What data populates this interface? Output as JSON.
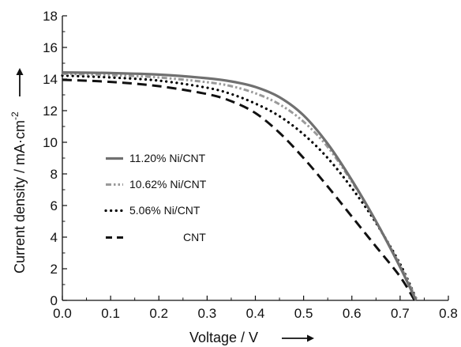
{
  "chart_data": {
    "type": "line",
    "xlabel": "Voltage / V",
    "ylabel": "Current density / mA·cm",
    "ylabel_superscript": "-2",
    "xlim": [
      0.0,
      0.8
    ],
    "ylim": [
      0,
      18
    ],
    "x_ticks": [
      "0.0",
      "0.1",
      "0.2",
      "0.3",
      "0.4",
      "0.5",
      "0.6",
      "0.7",
      "0.8"
    ],
    "y_ticks": [
      "0",
      "2",
      "4",
      "6",
      "8",
      "10",
      "12",
      "14",
      "16",
      "18"
    ],
    "grid": false,
    "legend_position": "center-left",
    "series": [
      {
        "name": "11.20% Ni/CNT",
        "style": "solid",
        "color": "#707070",
        "points": [
          [
            0.0,
            14.42
          ],
          [
            0.1,
            14.38
          ],
          [
            0.2,
            14.28
          ],
          [
            0.3,
            14.05
          ],
          [
            0.35,
            13.85
          ],
          [
            0.4,
            13.5
          ],
          [
            0.45,
            12.85
          ],
          [
            0.5,
            11.7
          ],
          [
            0.55,
            9.9
          ],
          [
            0.6,
            7.6
          ],
          [
            0.65,
            5.0
          ],
          [
            0.7,
            2.1
          ],
          [
            0.733,
            0.0
          ]
        ]
      },
      {
        "name": "10.62% Ni/CNT",
        "style": "dash-dot-dot",
        "color": "#9a9a9a",
        "points": [
          [
            0.0,
            14.33
          ],
          [
            0.1,
            14.25
          ],
          [
            0.2,
            14.1
          ],
          [
            0.3,
            13.8
          ],
          [
            0.35,
            13.55
          ],
          [
            0.4,
            13.1
          ],
          [
            0.45,
            12.4
          ],
          [
            0.5,
            11.3
          ],
          [
            0.55,
            9.7
          ],
          [
            0.6,
            7.5
          ],
          [
            0.65,
            5.0
          ],
          [
            0.7,
            2.2
          ],
          [
            0.735,
            0.0
          ]
        ]
      },
      {
        "name": "5.06% Ni/CNT",
        "style": "dotted",
        "color": "#000000",
        "points": [
          [
            0.0,
            14.22
          ],
          [
            0.1,
            14.1
          ],
          [
            0.2,
            13.9
          ],
          [
            0.3,
            13.45
          ],
          [
            0.35,
            13.05
          ],
          [
            0.4,
            12.45
          ],
          [
            0.45,
            11.65
          ],
          [
            0.5,
            10.5
          ],
          [
            0.55,
            9.0
          ],
          [
            0.6,
            7.1
          ],
          [
            0.65,
            4.9
          ],
          [
            0.7,
            2.3
          ],
          [
            0.735,
            0.0
          ]
        ]
      },
      {
        "name": "CNT",
        "style": "dashed",
        "color": "#111111",
        "points": [
          [
            0.0,
            13.95
          ],
          [
            0.1,
            13.82
          ],
          [
            0.2,
            13.55
          ],
          [
            0.3,
            13.05
          ],
          [
            0.35,
            12.6
          ],
          [
            0.4,
            11.85
          ],
          [
            0.45,
            10.6
          ],
          [
            0.5,
            9.0
          ],
          [
            0.55,
            7.2
          ],
          [
            0.6,
            5.3
          ],
          [
            0.65,
            3.4
          ],
          [
            0.7,
            1.5
          ],
          [
            0.73,
            0.0
          ]
        ]
      }
    ]
  }
}
